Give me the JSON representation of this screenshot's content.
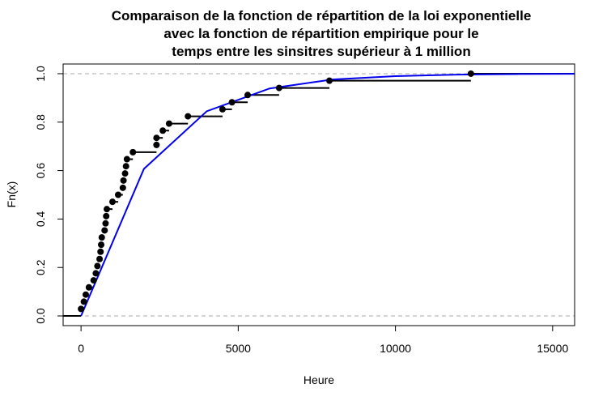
{
  "chart_data": {
    "type": "step",
    "title_lines": [
      "Comparaison de la fonction de répartition de la loi exponentielle",
      "avec la fonction de répartition empirique pour le",
      "temps entre les sinsitres supérieur à 1 million"
    ],
    "xlabel": "Heure",
    "ylabel": "Fn(x)",
    "xlim": [
      -570,
      15700
    ],
    "ylim": [
      -0.04,
      1.04
    ],
    "x_ticks": [
      0,
      5000,
      10000,
      15000
    ],
    "y_ticks": [
      0.0,
      0.2,
      0.4,
      0.6,
      0.8,
      1.0
    ],
    "x_tick_labels": [
      "0",
      "5000",
      "10000",
      "15000"
    ],
    "y_tick_labels": [
      "0.0",
      "0.2",
      "0.4",
      "0.6",
      "0.8",
      "1.0"
    ],
    "reference_lines_y": [
      0,
      1
    ],
    "empirical_points": [
      {
        "x": 0,
        "y": 0.029
      },
      {
        "x": 90,
        "y": 0.059
      },
      {
        "x": 150,
        "y": 0.088
      },
      {
        "x": 250,
        "y": 0.118
      },
      {
        "x": 400,
        "y": 0.147
      },
      {
        "x": 470,
        "y": 0.176
      },
      {
        "x": 520,
        "y": 0.206
      },
      {
        "x": 590,
        "y": 0.235
      },
      {
        "x": 620,
        "y": 0.265
      },
      {
        "x": 640,
        "y": 0.294
      },
      {
        "x": 660,
        "y": 0.324
      },
      {
        "x": 750,
        "y": 0.353
      },
      {
        "x": 780,
        "y": 0.382
      },
      {
        "x": 800,
        "y": 0.412
      },
      {
        "x": 820,
        "y": 0.441
      },
      {
        "x": 1000,
        "y": 0.471
      },
      {
        "x": 1180,
        "y": 0.5
      },
      {
        "x": 1330,
        "y": 0.529
      },
      {
        "x": 1350,
        "y": 0.559
      },
      {
        "x": 1400,
        "y": 0.588
      },
      {
        "x": 1430,
        "y": 0.618
      },
      {
        "x": 1460,
        "y": 0.647
      },
      {
        "x": 1650,
        "y": 0.676
      },
      {
        "x": 2400,
        "y": 0.706
      },
      {
        "x": 2400,
        "y": 0.735
      },
      {
        "x": 2600,
        "y": 0.765
      },
      {
        "x": 2800,
        "y": 0.794
      },
      {
        "x": 3400,
        "y": 0.824
      },
      {
        "x": 4500,
        "y": 0.853
      },
      {
        "x": 4800,
        "y": 0.882
      },
      {
        "x": 5300,
        "y": 0.912
      },
      {
        "x": 6300,
        "y": 0.941
      },
      {
        "x": 7900,
        "y": 0.971
      },
      {
        "x": 12400,
        "y": 1.0
      }
    ],
    "exponential_cdf": {
      "color": "#0000ee",
      "points": [
        {
          "x": 0,
          "y": 0.0
        },
        {
          "x": 2000,
          "y": 0.607
        },
        {
          "x": 4000,
          "y": 0.845
        },
        {
          "x": 6000,
          "y": 0.939
        },
        {
          "x": 8000,
          "y": 0.976
        },
        {
          "x": 10000,
          "y": 0.99
        },
        {
          "x": 12000,
          "y": 0.996
        },
        {
          "x": 14000,
          "y": 0.9985
        },
        {
          "x": 16000,
          "y": 0.9994
        }
      ]
    }
  }
}
